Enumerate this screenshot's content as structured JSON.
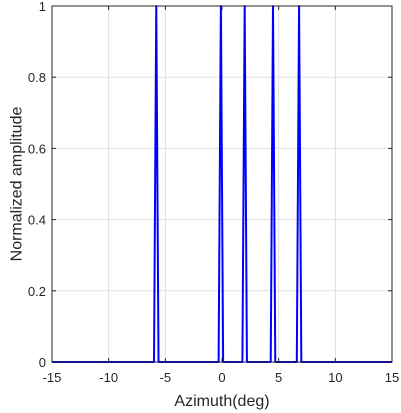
{
  "chart_data": {
    "type": "line",
    "xlabel": "Azimuth(deg)",
    "ylabel": "Normalized amplitude",
    "xlim": [
      -15,
      15
    ],
    "ylim": [
      0,
      1
    ],
    "grid": true,
    "series_color": "#0000ff",
    "x_ticks": [
      "-15",
      "-10",
      "-5",
      "0",
      "5",
      "10",
      "15"
    ],
    "y_ticks": [
      "0",
      "0.2",
      "0.4",
      "0.6",
      "0.8",
      "1"
    ],
    "series": [
      {
        "x": [
          -15,
          -6.0,
          -5.8,
          -5.6,
          -0.3,
          -0.1,
          0.1,
          1.8,
          2.0,
          2.2,
          4.3,
          4.5,
          4.7,
          6.6,
          6.8,
          7.0,
          15
        ],
        "y": [
          0,
          0,
          1,
          0,
          0,
          1,
          0,
          0,
          1,
          0,
          0,
          1,
          0,
          0,
          1,
          0,
          0
        ]
      }
    ]
  }
}
